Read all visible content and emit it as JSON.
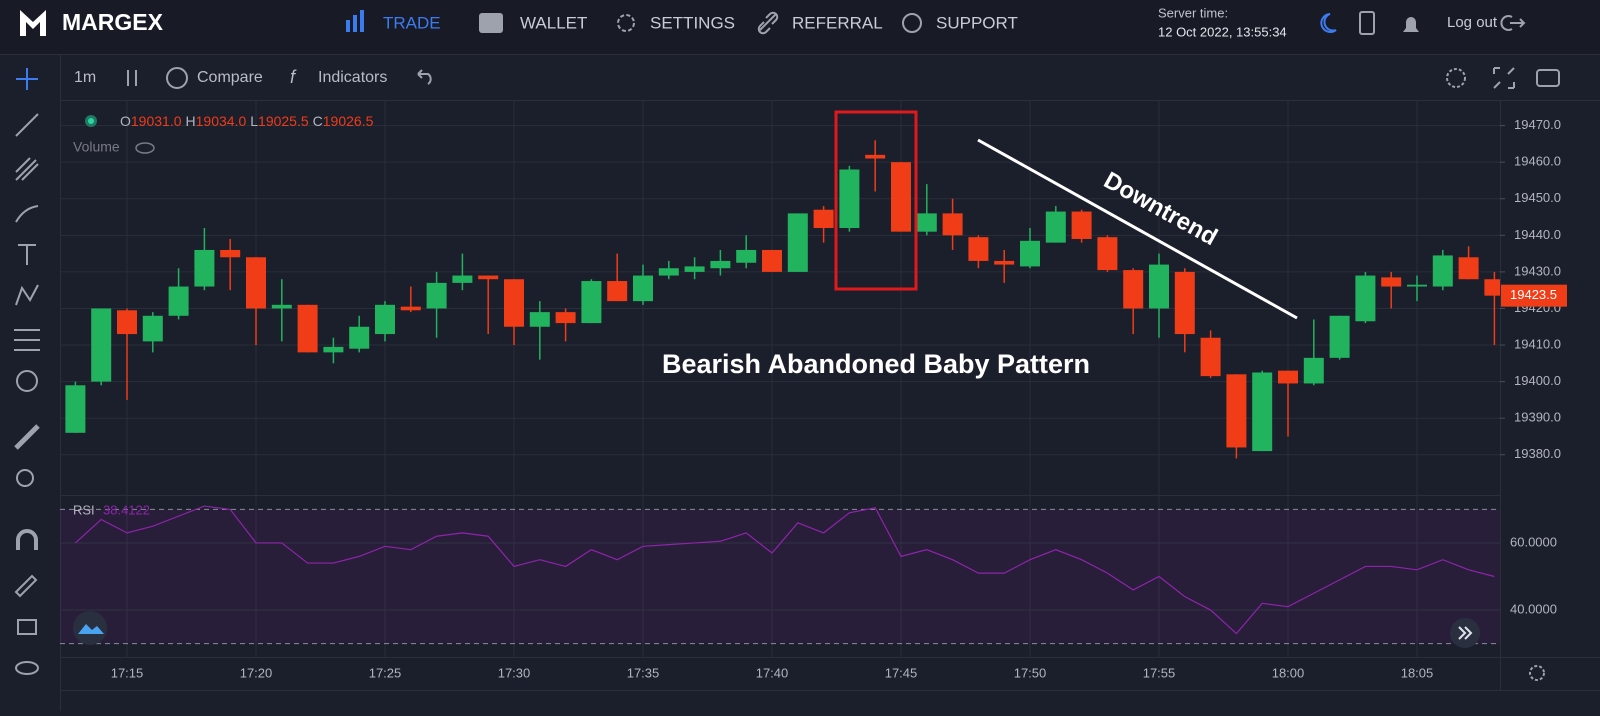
{
  "header": {
    "logo": "MARGEX",
    "nav": [
      "TRADE",
      "WALLET",
      "SETTINGS",
      "REFERRAL",
      "SUPPORT"
    ],
    "server_time_label": "Server time:",
    "server_time": "12 Oct 2022, 13:55:34",
    "logout": "Log out"
  },
  "toolbar": {
    "interval": "1m",
    "compare": "Compare",
    "indicators": "Indicators"
  },
  "legend": {
    "o": "O",
    "open": "19031.0",
    "h": "H",
    "high": "19034.0",
    "l": "L",
    "low": "19025.5",
    "c": "C",
    "close": "19026.5",
    "volume": "Volume"
  },
  "chart_data": [
    {
      "type": "candlestick",
      "categories": [
        null,
        null,
        "17:15",
        null,
        null,
        null,
        null,
        "17:20",
        null,
        null,
        null,
        null,
        "17:25",
        null,
        null,
        null,
        null,
        "17:30",
        null,
        null,
        null,
        null,
        "17:35",
        null,
        null,
        null,
        null,
        "17:40",
        null,
        null,
        null,
        null,
        "17:45",
        null,
        null,
        null,
        null,
        "17:50",
        null,
        null,
        null,
        null,
        "17:55",
        null,
        null,
        null,
        null,
        "18:00",
        null,
        null,
        null,
        null,
        "18:05",
        null,
        null,
        null
      ],
      "open": [
        19386,
        19400,
        19419.5,
        19411,
        19418,
        19426,
        19436,
        19434,
        19420,
        19421,
        19408,
        19409,
        19413,
        19420.5,
        19420,
        19427,
        19429,
        19428,
        19415,
        19419,
        19416,
        19427.5,
        19422,
        19429,
        19430,
        19431,
        19432.5,
        19436,
        19430,
        19447,
        19442,
        19462,
        19460,
        19441,
        19446,
        19439.5,
        19433,
        19431.5,
        19438,
        19446.5,
        19439.5,
        19430.5,
        19420,
        19430,
        19412,
        19402,
        19381,
        19403,
        19399.5,
        19406.5,
        19416.5,
        19428.5,
        19426,
        19426,
        19434,
        19428
      ],
      "high": [
        19400,
        19420,
        19420,
        19419,
        19431,
        19442,
        19439,
        19434,
        19428,
        19421,
        19412,
        19418,
        19422,
        19426,
        19430,
        19435,
        19429,
        19428,
        19422,
        19420,
        19428,
        19435,
        19432,
        19433,
        19434,
        19436,
        19440,
        19436,
        19446,
        19448,
        19459,
        19466,
        19460,
        19454,
        19450,
        19440,
        19436,
        19442,
        19448,
        19447,
        19440,
        19431,
        19435,
        19431,
        19414,
        19402,
        19403,
        19403,
        19417,
        19418,
        19430,
        19430,
        19429,
        19436,
        19437,
        19430
      ],
      "low": [
        19386,
        19399,
        19395,
        19408,
        19417,
        19425,
        19425,
        19410,
        19411,
        19408,
        19405,
        19408,
        19411,
        19419,
        19412,
        19425,
        19413,
        19410,
        19406,
        19411,
        19416,
        19422,
        19421,
        19428,
        19428,
        19429,
        19431,
        19430,
        19430,
        19438,
        19441,
        19452,
        19441,
        19440,
        19436,
        19431,
        19427,
        19431,
        19438,
        19438,
        19430,
        19413,
        19412,
        19408,
        19401,
        19379,
        19381,
        19385,
        19399,
        19406,
        19416,
        19420,
        19422,
        19425,
        19428,
        19410
      ],
      "close": [
        19399,
        19420,
        19413,
        19418,
        19426,
        19436,
        19434,
        19420,
        19421,
        19408,
        19409.5,
        19415,
        19421,
        19419.5,
        19427,
        19429,
        19428,
        19415,
        19419,
        19416,
        19427.5,
        19422,
        19429,
        19431,
        19431.5,
        19433,
        19436,
        19430,
        19446,
        19442,
        19458,
        19461,
        19441,
        19446,
        19440,
        19433,
        19432,
        19438.5,
        19446.5,
        19439,
        19430.5,
        19420,
        19432,
        19413,
        19401.5,
        19382,
        19402.5,
        19399.5,
        19406.5,
        19418,
        19429,
        19426,
        19426.5,
        19434.5,
        19428,
        19423.5
      ],
      "up_color": "#22b35e",
      "down_color": "#f03c17",
      "ylim": [
        19369,
        19477
      ],
      "yticks": [
        {
          "value": 19380,
          "label": "19380.0"
        },
        {
          "value": 19390,
          "label": "19390.0"
        },
        {
          "value": 19400,
          "label": "19400.0"
        },
        {
          "value": 19410,
          "label": "19410.0"
        },
        {
          "value": 19420,
          "label": "19420.0"
        },
        {
          "value": 19430,
          "label": "19430.0"
        },
        {
          "value": 19440,
          "label": "19440.0"
        },
        {
          "value": 19450,
          "label": "19450.0"
        },
        {
          "value": 19460,
          "label": "19460.0"
        },
        {
          "value": 19470,
          "label": "19470.0"
        }
      ],
      "last_price": {
        "value": 19423.5,
        "label": "19423.5"
      },
      "grid": true,
      "annotations": [
        "Downtrend",
        "Bearish Abandoned Baby Pattern"
      ]
    },
    {
      "type": "line",
      "name": "RSI",
      "value_label": "38.4122",
      "color": "#8e24aa",
      "values": [
        60,
        67,
        63,
        65,
        68,
        71,
        70,
        60,
        60,
        54,
        54,
        56,
        59,
        58,
        62,
        63,
        62,
        53,
        55,
        53,
        58,
        55,
        59,
        59.5,
        60,
        60.5,
        63,
        57,
        66,
        63,
        69,
        70.5,
        56,
        58,
        55,
        51,
        51,
        55,
        58,
        55,
        51,
        46,
        50,
        44,
        40,
        33,
        42,
        41,
        45,
        49,
        53,
        53,
        52,
        55,
        52,
        50
      ],
      "ylim": [
        26,
        74
      ],
      "yticks": [
        {
          "value": 40,
          "label": "40.0000"
        },
        {
          "value": 60,
          "label": "60.0000"
        }
      ],
      "bands": [
        30,
        70
      ],
      "grid": true
    }
  ]
}
